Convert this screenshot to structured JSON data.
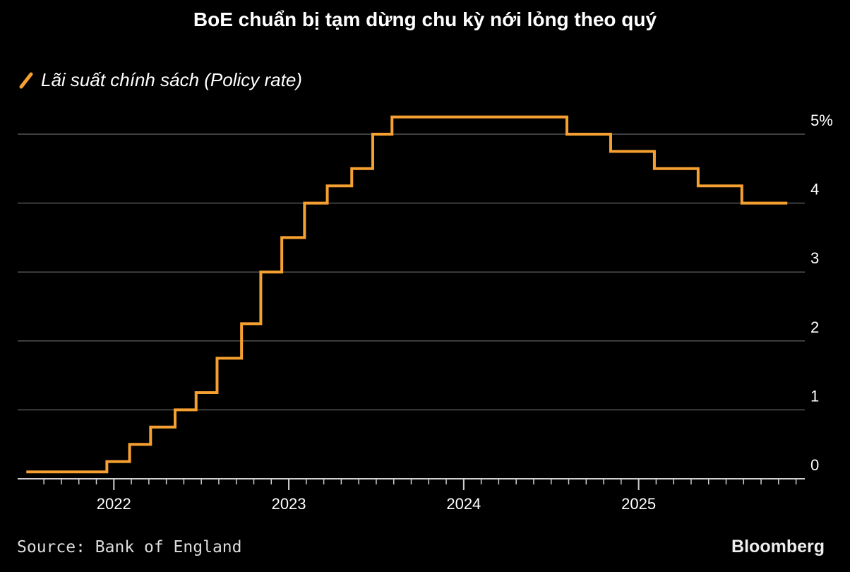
{
  "title": "BoE chuẩn bị tạm dừng chu kỳ nới lỏng theo quý",
  "legend": {
    "label": "Lãi suất chính sách (Policy rate)",
    "icon": "line-swatch-icon"
  },
  "colors": {
    "series": "#f5a030",
    "grid": "#555555",
    "axis": "#cfcfcf",
    "background": "#000000"
  },
  "chart_data": {
    "type": "line",
    "step": true,
    "title": "BoE chuẩn bị tạm dừng chu kỳ nới lỏng theo quý",
    "xlabel": "",
    "ylabel": "",
    "series": [
      {
        "name": "Lãi suất chính sách (Policy rate)",
        "x": [
          2021.5,
          2021.96,
          2022.09,
          2022.21,
          2022.35,
          2022.47,
          2022.59,
          2022.73,
          2022.84,
          2022.96,
          2023.09,
          2023.22,
          2023.36,
          2023.48,
          2023.59,
          2024.59,
          2024.84,
          2025.09,
          2025.34,
          2025.59,
          2025.83
        ],
        "values": [
          0.1,
          0.25,
          0.5,
          0.75,
          1.0,
          1.25,
          1.75,
          2.25,
          3.0,
          3.5,
          4.0,
          4.25,
          4.5,
          5.0,
          5.25,
          5.0,
          4.75,
          4.5,
          4.25,
          4.0,
          4.0
        ]
      }
    ],
    "x_end": 2025.85,
    "xlim": [
      2021.45,
      2025.95
    ],
    "ylim": [
      0,
      5.3
    ],
    "y_ticks": [
      {
        "value": 5,
        "label": "5%"
      },
      {
        "value": 4,
        "label": "4"
      },
      {
        "value": 3,
        "label": "3"
      },
      {
        "value": 2,
        "label": "2"
      },
      {
        "value": 1,
        "label": "1"
      },
      {
        "value": 0,
        "label": "0"
      }
    ],
    "x_ticks": [
      {
        "value": 2022,
        "label": "2022"
      },
      {
        "value": 2023,
        "label": "2023"
      },
      {
        "value": 2024,
        "label": "2024"
      },
      {
        "value": 2025,
        "label": "2025"
      }
    ],
    "minor_ticks_per_year": 12,
    "grid": true
  },
  "footer": {
    "source": "Source: Bank of England",
    "brand": "Bloomberg"
  }
}
